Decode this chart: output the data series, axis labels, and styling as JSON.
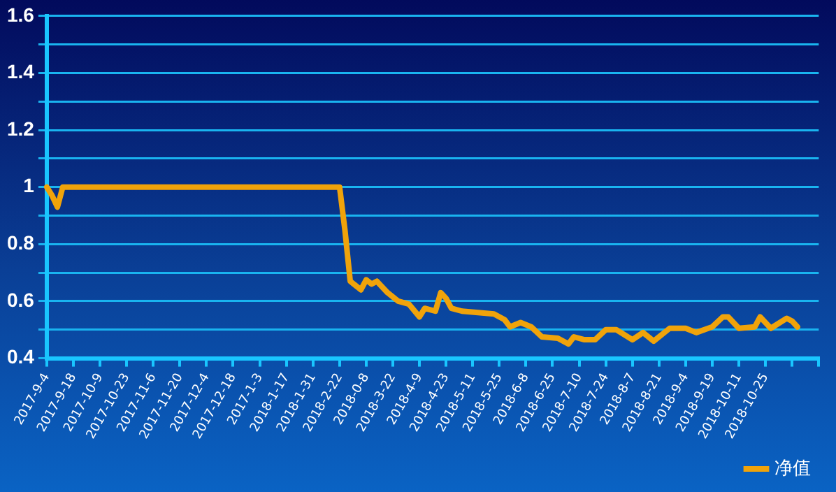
{
  "chart_data": {
    "type": "line",
    "categories": [
      "2017-9-4",
      null,
      null,
      null,
      null,
      "2017-9-18",
      null,
      null,
      null,
      null,
      "2017-10-9",
      null,
      null,
      null,
      null,
      "2017-10-23",
      null,
      null,
      null,
      null,
      "2017-11-6",
      null,
      null,
      null,
      null,
      "2017-11-20",
      null,
      null,
      null,
      null,
      "2017-12-4",
      null,
      null,
      null,
      null,
      "2017-12-18",
      null,
      null,
      null,
      null,
      "2017-1-3",
      null,
      null,
      null,
      null,
      "2018-1-17",
      null,
      null,
      null,
      null,
      "2018-1-31",
      null,
      null,
      null,
      null,
      "2018-2-22",
      null,
      null,
      null,
      null,
      "2018-0-8",
      null,
      null,
      null,
      null,
      "2018-3-22",
      null,
      null,
      null,
      null,
      "2018-4-9",
      null,
      null,
      null,
      null,
      "2018-4-23",
      null,
      null,
      null,
      null,
      "2018-5-11",
      null,
      null,
      null,
      null,
      "2018-5-25",
      null,
      null,
      null,
      null,
      "2018-6-8",
      null,
      null,
      null,
      null,
      "2018-6-25",
      null,
      null,
      null,
      null,
      "2018-7-10",
      null,
      null,
      null,
      null,
      "2018-7-24",
      null,
      null,
      null,
      null,
      "2018-8-7",
      null,
      null,
      null,
      null,
      "2018-8-21",
      null,
      null,
      null,
      null,
      "2018-9-4",
      null,
      null,
      null,
      null,
      "2018-9-19",
      null,
      null,
      null,
      null,
      "2018-10-11",
      null,
      null,
      null,
      null,
      "2018-10-25",
      null,
      null,
      null,
      null,
      null,
      null,
      null,
      null,
      null,
      null
    ],
    "series": [
      {
        "name": "净值",
        "color": "#f0a30a",
        "values": [
          1.0,
          0.97,
          0.93,
          1.0,
          null,
          null,
          null,
          null,
          null,
          null,
          null,
          null,
          null,
          null,
          null,
          null,
          null,
          null,
          null,
          null,
          1.0,
          null,
          null,
          null,
          null,
          null,
          null,
          null,
          null,
          null,
          null,
          null,
          null,
          null,
          null,
          null,
          null,
          null,
          null,
          null,
          1.0,
          null,
          null,
          null,
          null,
          null,
          null,
          null,
          null,
          null,
          null,
          null,
          null,
          null,
          null,
          1.0,
          0.85,
          0.67,
          null,
          0.64,
          0.675,
          0.66,
          0.67,
          null,
          0.63,
          null,
          0.6,
          null,
          0.59,
          null,
          0.545,
          0.575,
          null,
          0.565,
          0.63,
          0.61,
          0.575,
          null,
          0.565,
          null,
          null,
          0.56,
          null,
          null,
          0.555,
          null,
          0.535,
          0.51,
          null,
          0.525,
          null,
          0.51,
          null,
          0.475,
          null,
          null,
          0.47,
          null,
          0.45,
          0.475,
          null,
          0.465,
          null,
          0.465,
          null,
          0.5,
          null,
          0.5,
          null,
          null,
          0.465,
          null,
          0.49,
          null,
          0.46,
          null,
          null,
          0.505,
          null,
          null,
          0.505,
          null,
          0.49,
          null,
          null,
          0.51,
          null,
          0.545,
          0.545,
          null,
          0.505,
          null,
          null,
          0.51,
          0.545,
          null,
          0.505,
          null,
          null,
          0.54,
          0.53,
          0.51,
          null,
          null,
          null,
          null
        ]
      }
    ],
    "ylim": [
      0.4,
      1.6
    ],
    "yticks": [
      0.4,
      {
        "value": 0.5,
        "label": null
      },
      0.6,
      {
        "value": 0.7,
        "label": null
      },
      0.8,
      {
        "value": 0.9,
        "label": null
      },
      1,
      {
        "value": 1.1,
        "label": null
      },
      1.2,
      {
        "value": 1.3,
        "label": null
      },
      1.4,
      {
        "value": 1.5,
        "label": null
      },
      1.6
    ],
    "grid": "y",
    "legend": "bottom right",
    "marker": "none"
  }
}
